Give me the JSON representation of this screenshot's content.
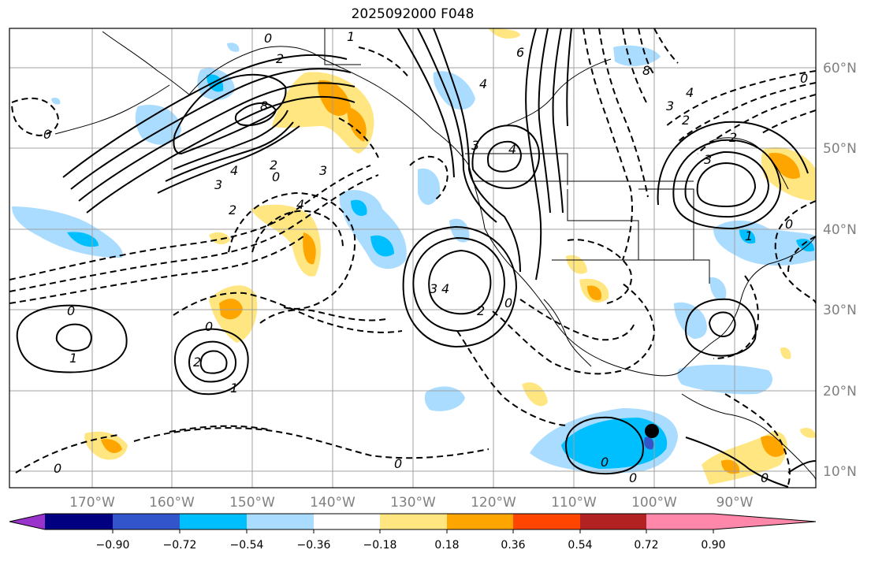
{
  "title": "2025092000 F048",
  "map": {
    "lat_labels": [
      "60°N",
      "50°N",
      "40°N",
      "30°N",
      "20°N",
      "10°N"
    ],
    "lon_labels": [
      "170°W",
      "160°W",
      "150°W",
      "140°W",
      "130°W",
      "120°W",
      "110°W",
      "100°W",
      "90°W"
    ],
    "contour_labels": [
      "0",
      "1",
      "2",
      "3",
      "4",
      "6",
      "8"
    ]
  },
  "colorbar": {
    "tick_labels": [
      "−0.90",
      "−0.72",
      "−0.54",
      "−0.36",
      "−0.18",
      "0.18",
      "0.36",
      "0.54",
      "0.72",
      "0.90"
    ],
    "colors": [
      "#9933cc",
      "#000080",
      "#3355cc",
      "#00bfff",
      "#aadcff",
      "#ffffff",
      "#ffe680",
      "#ffa500",
      "#ff4500",
      "#b22222",
      "#ff88aa"
    ]
  }
}
